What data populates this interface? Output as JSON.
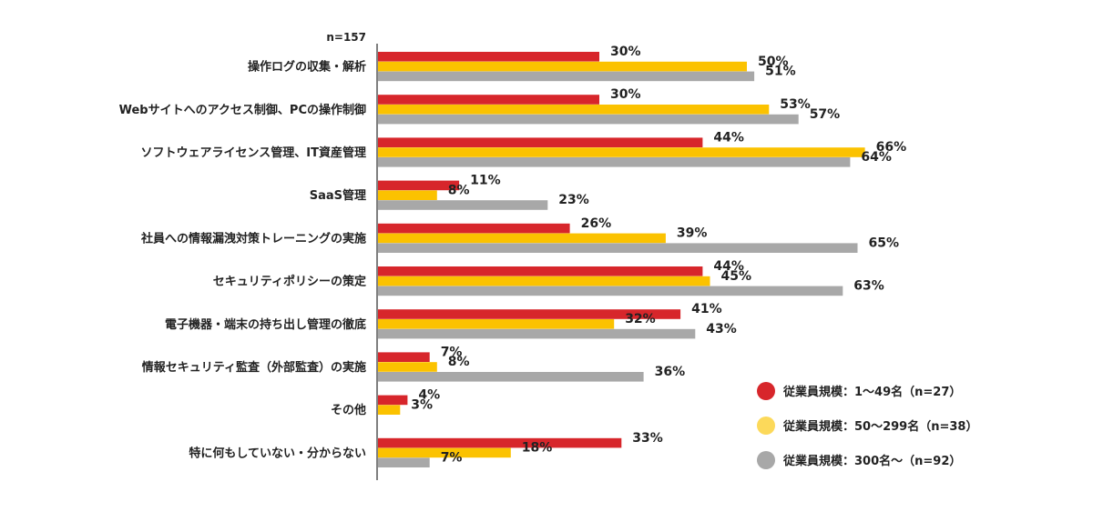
{
  "chart_data": {
    "type": "bar",
    "orientation": "horizontal",
    "n_note": "n=157",
    "categories": [
      "操作ログの収集・解析",
      "Webサイトへのアクセス制御、PCの操作制御",
      "ソフトウェアライセンス管理、IT資産管理",
      "SaaS管理",
      "社員への情報漏洩対策トレーニングの実施",
      "セキュリティポリシーの策定",
      "電子機器・端末の持ち出し管理の徹底",
      "情報セキュリティ監査（外部監査）の実施",
      "その他",
      "特に何もしていない・分からない"
    ],
    "series": [
      {
        "name": "従業員規模：1〜49名（n=27）",
        "color": "#d7262b",
        "values": [
          30,
          30,
          44,
          11,
          26,
          44,
          41,
          7,
          4,
          33
        ],
        "labels": [
          "30%",
          "30%",
          "44%",
          "11%",
          "26%",
          "44%",
          "41%",
          "7%",
          "4%",
          "33%"
        ]
      },
      {
        "name": "従業員規模：50〜299名（n=38）",
        "color": "#fbc200",
        "values": [
          50,
          53,
          66,
          8,
          39,
          45,
          32,
          8,
          3,
          18
        ],
        "labels": [
          "50%",
          "53%",
          "66%",
          "8%",
          "39%",
          "45%",
          "32%",
          "8%",
          "3%",
          "18%"
        ]
      },
      {
        "name": "従業員規模：300名〜（n=92）",
        "color": "#a8a8a8",
        "values": [
          51,
          57,
          64,
          23,
          65,
          63,
          43,
          36,
          0,
          7
        ],
        "labels": [
          "51%",
          "57%",
          "64%",
          "23%",
          "65%",
          "63%",
          "43%",
          "36%",
          "",
          "7%"
        ]
      }
    ],
    "xlim": [
      0,
      100
    ],
    "grid": false,
    "legend_position": "bottom-right",
    "legend_colors": [
      "#d7262b",
      "#fcd95a",
      "#a8a8a8"
    ]
  }
}
